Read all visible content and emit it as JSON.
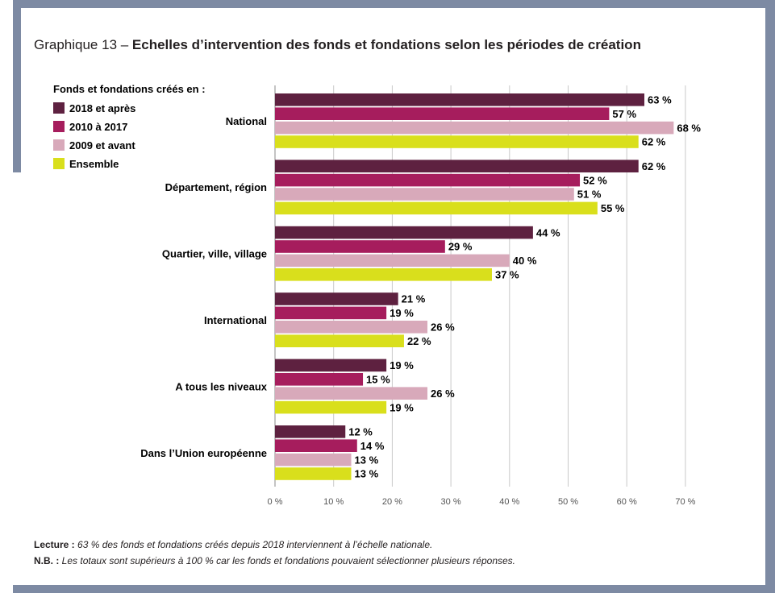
{
  "title_prefix": "Graphique 13 – ",
  "title_main": "Echelles d’intervention des fonds et fondations selon les périodes de création",
  "legend_title": "Fonds et fondations créés en :",
  "notes": {
    "lecture_label": "Lecture :",
    "lecture_text": " 63 % des fonds et fondations créés depuis 2018 interviennent à l’échelle nationale.",
    "nb_label": "N.B. :",
    "nb_text": " Les totaux sont supérieurs à 100 % car les fonds et fondations pouvaient sélectionner plusieurs réponses."
  },
  "chart_data": {
    "type": "bar",
    "orientation": "horizontal",
    "categories": [
      "National",
      "Département, région",
      "Quartier, ville, village",
      "International",
      "A tous les niveaux",
      "Dans l’Union européenne"
    ],
    "series": [
      {
        "name": "2018 et après",
        "color": "#5e2140",
        "values": [
          63,
          62,
          44,
          21,
          19,
          12
        ]
      },
      {
        "name": "2010 à 2017",
        "color": "#a61d5d",
        "values": [
          57,
          52,
          29,
          19,
          15,
          14
        ]
      },
      {
        "name": "2009 et avant",
        "color": "#d8a9ba",
        "values": [
          68,
          51,
          40,
          26,
          26,
          13
        ]
      },
      {
        "name": "Ensemble",
        "color": "#d9df1c",
        "values": [
          62,
          55,
          37,
          22,
          19,
          13
        ]
      }
    ],
    "xlim": [
      0,
      70
    ],
    "xticks": [
      0,
      10,
      20,
      30,
      40,
      50,
      60,
      70
    ],
    "tick_suffix": " %",
    "value_suffix": " %",
    "grid": true,
    "legend_position": "top-left"
  }
}
